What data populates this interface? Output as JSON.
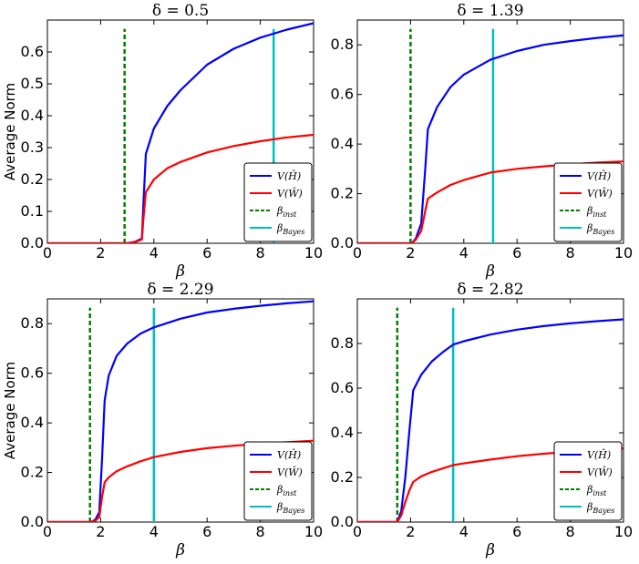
{
  "chart_data": [
    {
      "type": "line",
      "title": "δ = 0.5",
      "xlabel": "β",
      "ylabel": "Average Norm",
      "xlim": [
        0,
        10
      ],
      "ylim": [
        0,
        0.7
      ],
      "xticks": [
        "0",
        "2",
        "4",
        "6",
        "8",
        "10"
      ],
      "yticks": [
        "0.0",
        "0.1",
        "0.2",
        "0.3",
        "0.4",
        "0.5",
        "0.6"
      ],
      "beta_inst": 2.9,
      "beta_bayes": 8.5,
      "series": [
        {
          "name": "V(H)",
          "color": "#0000ff",
          "style": "solid",
          "x": [
            0,
            3.0,
            3.3,
            3.55,
            3.6,
            3.7,
            4,
            4.5,
            5,
            6,
            7,
            8,
            9,
            10
          ],
          "y": [
            0,
            0,
            0.005,
            0.015,
            0.11,
            0.28,
            0.36,
            0.43,
            0.48,
            0.56,
            0.61,
            0.645,
            0.67,
            0.69
          ]
        },
        {
          "name": "V(W)",
          "color": "#ff0000",
          "style": "solid",
          "x": [
            0,
            3.0,
            3.3,
            3.55,
            3.6,
            3.7,
            4,
            4.5,
            5,
            6,
            7,
            8,
            9,
            10
          ],
          "y": [
            0,
            0,
            0.004,
            0.012,
            0.07,
            0.16,
            0.2,
            0.235,
            0.255,
            0.285,
            0.305,
            0.32,
            0.332,
            0.34
          ]
        }
      ],
      "legend": {
        "position": "lower-right",
        "entries": [
          "V(Ĥ)",
          "V(Ŵ)",
          "βinst",
          "βBayes"
        ]
      }
    },
    {
      "type": "line",
      "title": "δ = 1.39",
      "xlabel": "β",
      "ylabel": "",
      "xlim": [
        0,
        10
      ],
      "ylim": [
        0,
        0.9
      ],
      "xticks": [
        "0",
        "2",
        "4",
        "6",
        "8",
        "10"
      ],
      "yticks": [
        "0.0",
        "0.2",
        "0.4",
        "0.6",
        "0.8"
      ],
      "beta_inst": 2.0,
      "beta_bayes": 5.1,
      "series": [
        {
          "name": "V(H)",
          "color": "#0000ff",
          "style": "solid",
          "x": [
            0,
            2.05,
            2.2,
            2.4,
            2.55,
            2.65,
            3,
            3.5,
            4,
            5,
            6,
            7,
            8,
            9,
            10
          ],
          "y": [
            0,
            0,
            0.02,
            0.08,
            0.3,
            0.46,
            0.55,
            0.63,
            0.68,
            0.74,
            0.775,
            0.8,
            0.815,
            0.828,
            0.838
          ]
        },
        {
          "name": "V(W)",
          "color": "#ff0000",
          "style": "solid",
          "x": [
            0,
            2.05,
            2.2,
            2.4,
            2.55,
            2.65,
            3,
            3.5,
            4,
            5,
            6,
            7,
            8,
            9,
            10
          ],
          "y": [
            0,
            0,
            0.015,
            0.05,
            0.13,
            0.18,
            0.205,
            0.235,
            0.255,
            0.285,
            0.3,
            0.31,
            0.318,
            0.325,
            0.33
          ]
        }
      ],
      "legend": {
        "position": "lower-right",
        "entries": [
          "V(Ĥ)",
          "V(Ŵ)",
          "βinst",
          "βBayes"
        ]
      }
    },
    {
      "type": "line",
      "title": "δ = 2.29",
      "xlabel": "β",
      "ylabel": "Average Norm",
      "xlim": [
        0,
        10
      ],
      "ylim": [
        0,
        0.9
      ],
      "xticks": [
        "0",
        "2",
        "4",
        "6",
        "8",
        "10"
      ],
      "yticks": [
        "0.0",
        "0.2",
        "0.4",
        "0.6",
        "0.8"
      ],
      "beta_inst": 1.6,
      "beta_bayes": 4.0,
      "series": [
        {
          "name": "V(H)",
          "color": "#0000ff",
          "style": "solid",
          "x": [
            0,
            1.65,
            1.8,
            1.95,
            2.05,
            2.15,
            2.3,
            2.6,
            3,
            3.5,
            4,
            5,
            6,
            7,
            8,
            9,
            10
          ],
          "y": [
            0,
            0,
            0.01,
            0.04,
            0.25,
            0.49,
            0.59,
            0.67,
            0.72,
            0.76,
            0.785,
            0.82,
            0.845,
            0.86,
            0.872,
            0.882,
            0.89
          ]
        },
        {
          "name": "V(W)",
          "color": "#ff0000",
          "style": "solid",
          "x": [
            0,
            1.65,
            1.8,
            1.95,
            2.05,
            2.15,
            2.3,
            2.6,
            3,
            3.5,
            4,
            5,
            6,
            7,
            8,
            9,
            10
          ],
          "y": [
            0,
            0,
            0.005,
            0.02,
            0.1,
            0.16,
            0.18,
            0.205,
            0.225,
            0.245,
            0.262,
            0.283,
            0.298,
            0.308,
            0.316,
            0.322,
            0.328
          ]
        }
      ],
      "legend": {
        "position": "lower-right",
        "entries": [
          "V(Ĥ)",
          "V(Ŵ)",
          "βinst",
          "βBayes"
        ]
      }
    },
    {
      "type": "line",
      "title": "δ = 2.82",
      "xlabel": "β",
      "ylabel": "",
      "xlim": [
        0,
        10
      ],
      "ylim": [
        0,
        1.0
      ],
      "xticks": [
        "0",
        "2",
        "4",
        "6",
        "8",
        "10"
      ],
      "yticks": [
        "0.0",
        "0.2",
        "0.4",
        "0.6",
        "0.8"
      ],
      "beta_inst": 1.5,
      "beta_bayes": 3.6,
      "series": [
        {
          "name": "V(H)",
          "color": "#0000ff",
          "style": "solid",
          "x": [
            0,
            1.5,
            1.65,
            1.8,
            1.95,
            2.1,
            2.4,
            2.8,
            3.2,
            3.6,
            4,
            5,
            6,
            7,
            8,
            9,
            10
          ],
          "y": [
            0,
            0,
            0.05,
            0.2,
            0.4,
            0.59,
            0.66,
            0.72,
            0.76,
            0.795,
            0.81,
            0.84,
            0.862,
            0.878,
            0.89,
            0.9,
            0.908
          ]
        },
        {
          "name": "V(W)",
          "color": "#ff0000",
          "style": "solid",
          "x": [
            0,
            1.5,
            1.65,
            1.8,
            1.95,
            2.1,
            2.4,
            2.8,
            3.2,
            3.6,
            4,
            5,
            6,
            7,
            8,
            9,
            10
          ],
          "y": [
            0,
            0,
            0.03,
            0.09,
            0.14,
            0.18,
            0.205,
            0.225,
            0.24,
            0.255,
            0.263,
            0.28,
            0.295,
            0.306,
            0.315,
            0.323,
            0.33
          ]
        }
      ],
      "legend": {
        "position": "lower-right",
        "entries": [
          "V(Ĥ)",
          "V(Ŵ)",
          "βinst",
          "βBayes"
        ]
      }
    }
  ],
  "colors": {
    "v_h": "#0000ff",
    "v_w": "#ff0000",
    "beta_inst": "#008000",
    "beta_bayes": "#00bfbf"
  }
}
